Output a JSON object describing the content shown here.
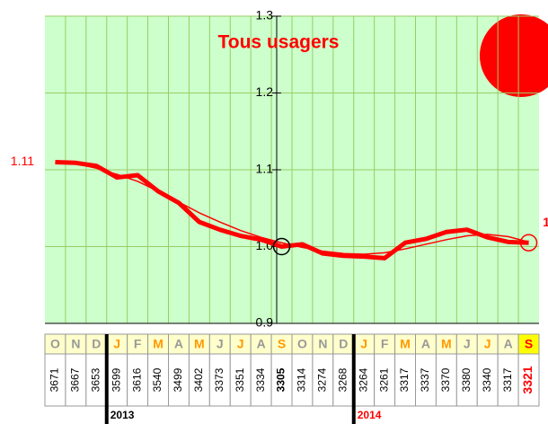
{
  "chart_data": {
    "type": "line",
    "title": "Tous usagers",
    "categories": [
      "O",
      "N",
      "D",
      "J",
      "F",
      "M",
      "A",
      "M",
      "J",
      "J",
      "A",
      "S",
      "O",
      "N",
      "D",
      "J",
      "F",
      "M",
      "A",
      "M",
      "J",
      "J",
      "A",
      "S"
    ],
    "series": [
      {
        "color": "#ff0000",
        "values": [
          1.11,
          1.109,
          1.105,
          1.09,
          1.093,
          1.072,
          1.057,
          1.032,
          1.022,
          1.014,
          1.009,
          1.0,
          1.003,
          0.991,
          0.988,
          0.987,
          0.985,
          1.005,
          1.01,
          1.019,
          1.022,
          1.012,
          1.006,
          1.005
        ],
        "value_labels": [
          "1.11",
          null,
          null,
          null,
          null,
          null,
          null,
          null,
          null,
          null,
          null,
          null,
          null,
          null,
          null,
          null,
          null,
          null,
          null,
          null,
          null,
          null,
          null,
          "1"
        ]
      },
      {
        "color": "#ff0000",
        "values": [
          1.11,
          1.108,
          1.102,
          1.094,
          1.085,
          1.072,
          1.058,
          1.044,
          1.032,
          1.021,
          1.012,
          1.005,
          0.999,
          0.994,
          0.991,
          0.99,
          0.992,
          0.997,
          1.003,
          1.009,
          1.014,
          1.016,
          1.013,
          1.006
        ]
      }
    ],
    "ylim": [
      0.9,
      1.3
    ],
    "yticks": [
      0.9,
      {
        "value": 1,
        "label": "1.0"
      },
      1.1,
      1.2,
      1.3
    ],
    "grid": true,
    "counts": [
      3671,
      3667,
      3653,
      3599,
      3616,
      3540,
      3499,
      3402,
      3373,
      3351,
      3334,
      3305,
      3314,
      3274,
      3268,
      3264,
      3261,
      3317,
      3337,
      3370,
      3380,
      3340,
      3317,
      3321
    ],
    "years": [
      "2013",
      "2014"
    ]
  }
}
